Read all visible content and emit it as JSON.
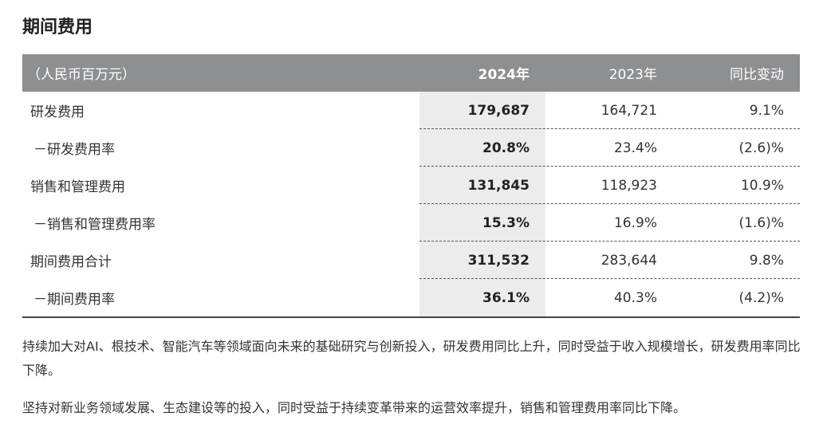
{
  "title": "期间费用",
  "table": {
    "headers": [
      "（人民币百万元）",
      "2024年",
      "2023年",
      "同比变动"
    ],
    "rows": [
      [
        "研发费用",
        "179,687",
        "164,721",
        "9.1%"
      ],
      [
        "－研发费用率",
        "20.8%",
        "23.4%",
        "(2.6)%"
      ],
      [
        "销售和管理费用",
        "131,845",
        "118,923",
        "10.9%"
      ],
      [
        "－销售和管理费用率",
        "15.3%",
        "16.9%",
        "(1.6)%"
      ],
      [
        "期间费用合计",
        "311,532",
        "283,644",
        "9.8%"
      ],
      [
        "－期间费用率",
        "36.1%",
        "40.3%",
        "(4.2)%"
      ]
    ]
  },
  "paragraphs": [
    "持续加大对AI、根技术、智能汽车等领域面向未来的基础研究与创新投入，研发费用同比上升，同时受益于收入规模增长，研发费用率同比下降。",
    "坚持对新业务领域发展、生态建设等的投入，同时受益于持续变革带来的运营效率提升，销售和管理费用率同比下降。"
  ],
  "colors": {
    "header_bg": "#8e8f91",
    "highlight_col": "#ececec"
  }
}
